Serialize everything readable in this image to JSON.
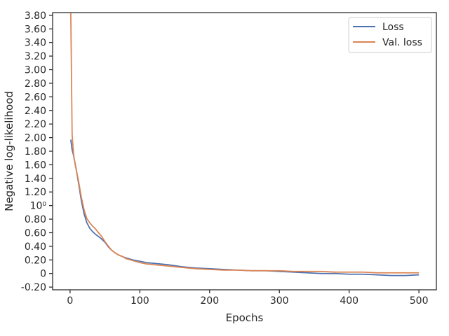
{
  "chart_data": {
    "type": "line",
    "title": "",
    "xlabel": "Epochs",
    "ylabel": "Negative log-likelihood",
    "xlim": [
      -25,
      525
    ],
    "ylim": [
      -0.24,
      3.84
    ],
    "grid": false,
    "legend_position": "top-right",
    "x_ticks": [
      {
        "value": 0,
        "label": "0"
      },
      {
        "value": 100,
        "label": "100"
      },
      {
        "value": 200,
        "label": "200"
      },
      {
        "value": 300,
        "label": "300"
      },
      {
        "value": 400,
        "label": "400"
      },
      {
        "value": 500,
        "label": "500"
      }
    ],
    "y_ticks": [
      {
        "value": -0.2,
        "label": "-0.20"
      },
      {
        "value": 0.0,
        "label": "0"
      },
      {
        "value": 0.2,
        "label": "0.20"
      },
      {
        "value": 0.4,
        "label": "0.40"
      },
      {
        "value": 0.6,
        "label": "0.60"
      },
      {
        "value": 0.8,
        "label": "0.80"
      },
      {
        "value": 1.0,
        "label": "10⁰"
      },
      {
        "value": 1.2,
        "label": "1.20"
      },
      {
        "value": 1.4,
        "label": "1.40"
      },
      {
        "value": 1.6,
        "label": "1.60"
      },
      {
        "value": 1.8,
        "label": "1.80"
      },
      {
        "value": 2.0,
        "label": "2.00"
      },
      {
        "value": 2.2,
        "label": "2.20"
      },
      {
        "value": 2.4,
        "label": "2.40"
      },
      {
        "value": 2.6,
        "label": "2.60"
      },
      {
        "value": 2.8,
        "label": "2.80"
      },
      {
        "value": 3.0,
        "label": "3.00"
      },
      {
        "value": 3.2,
        "label": "3.20"
      },
      {
        "value": 3.4,
        "label": "3.40"
      },
      {
        "value": 3.6,
        "label": "3.60"
      },
      {
        "value": 3.8,
        "label": "3.80"
      }
    ],
    "series": [
      {
        "name": "Loss",
        "color": "#4c72b0",
        "x": [
          1,
          3,
          5,
          8,
          12,
          16,
          20,
          24,
          28,
          32,
          36,
          40,
          45,
          50,
          55,
          60,
          65,
          70,
          75,
          80,
          90,
          100,
          110,
          120,
          140,
          160,
          180,
          200,
          220,
          240,
          260,
          280,
          300,
          320,
          340,
          360,
          380,
          400,
          420,
          440,
          460,
          480,
          500
        ],
        "y": [
          1.97,
          1.82,
          1.74,
          1.58,
          1.34,
          1.08,
          0.88,
          0.75,
          0.67,
          0.62,
          0.58,
          0.55,
          0.51,
          0.46,
          0.39,
          0.34,
          0.3,
          0.27,
          0.25,
          0.23,
          0.2,
          0.18,
          0.16,
          0.15,
          0.13,
          0.1,
          0.08,
          0.07,
          0.06,
          0.05,
          0.04,
          0.04,
          0.03,
          0.02,
          0.01,
          0.0,
          0.0,
          -0.01,
          -0.01,
          -0.02,
          -0.03,
          -0.03,
          -0.02
        ]
      },
      {
        "name": "Val. loss",
        "color": "#dd8452",
        "x": [
          1,
          2,
          3,
          4,
          5,
          6,
          8,
          12,
          16,
          20,
          24,
          28,
          32,
          36,
          40,
          45,
          50,
          55,
          60,
          65,
          70,
          75,
          80,
          90,
          100,
          110,
          120,
          140,
          160,
          180,
          200,
          220,
          240,
          260,
          280,
          300,
          320,
          340,
          360,
          380,
          400,
          420,
          440,
          460,
          480,
          500
        ],
        "y": [
          3.83,
          2.9,
          2.05,
          1.9,
          1.77,
          1.68,
          1.57,
          1.37,
          1.13,
          0.94,
          0.81,
          0.75,
          0.7,
          0.66,
          0.61,
          0.55,
          0.47,
          0.4,
          0.34,
          0.3,
          0.27,
          0.25,
          0.22,
          0.19,
          0.16,
          0.14,
          0.13,
          0.11,
          0.09,
          0.07,
          0.06,
          0.05,
          0.05,
          0.04,
          0.04,
          0.04,
          0.03,
          0.03,
          0.03,
          0.02,
          0.02,
          0.02,
          0.01,
          0.01,
          0.01,
          0.01
        ]
      }
    ]
  }
}
